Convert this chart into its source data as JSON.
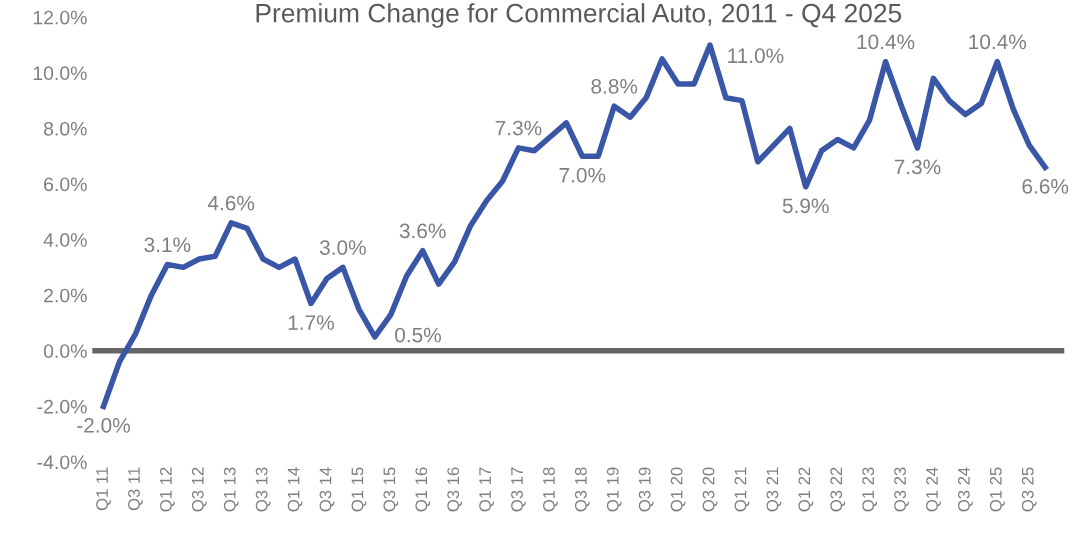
{
  "chart_data": {
    "type": "line",
    "title": "Premium Change for Commercial Auto, 2011 - Q4 2025",
    "categories": [
      "Q1 11",
      null,
      "Q3 11",
      null,
      "Q1 12",
      null,
      "Q3 12",
      null,
      "Q1 13",
      null,
      "Q3 13",
      null,
      "Q1 14",
      null,
      "Q3 14",
      null,
      "Q1 15",
      null,
      "Q3 15",
      null,
      "Q1 16",
      null,
      "Q3 16",
      null,
      "Q1 17",
      null,
      "Q3 17",
      null,
      "Q1 18",
      null,
      "Q3 18",
      null,
      "Q1 19",
      null,
      "Q3 19",
      null,
      "Q1 20",
      null,
      "Q3 20",
      null,
      "Q1 21",
      null,
      "Q3 21",
      null,
      "Q1 22",
      null,
      "Q3 22",
      null,
      "Q1 23",
      null,
      "Q3 23",
      null,
      "Q1 24",
      null,
      "Q3 24",
      null,
      "Q1 25",
      null,
      "Q3 25",
      null
    ],
    "series": [
      {
        "color": "#3a56a6",
        "values": [
          -2.0,
          -0.4,
          0.6,
          2.0,
          3.1,
          3.0,
          3.3,
          3.4,
          4.6,
          4.4,
          3.3,
          3.0,
          3.3,
          1.7,
          2.6,
          3.0,
          1.5,
          0.5,
          1.3,
          2.7,
          3.6,
          2.4,
          3.2,
          4.5,
          5.4,
          6.1,
          7.3,
          7.2,
          7.7,
          8.2,
          7.0,
          7.0,
          8.8,
          8.4,
          9.1,
          10.5,
          9.6,
          9.6,
          11.0,
          9.1,
          9.0,
          6.8,
          7.4,
          8.0,
          5.9,
          7.2,
          7.6,
          7.3,
          8.3,
          10.4,
          8.8,
          7.3,
          9.8,
          9.0,
          8.5,
          8.9,
          10.4,
          8.7,
          7.4,
          6.6
        ],
        "value_labels": [
          "-2.0%",
          null,
          null,
          null,
          "3.1%",
          null,
          null,
          null,
          "4.6%",
          null,
          null,
          null,
          null,
          "1.7%",
          null,
          "3.0%",
          null,
          "0.5%",
          null,
          null,
          "3.6%",
          null,
          null,
          null,
          null,
          null,
          "7.3%",
          null,
          null,
          null,
          "7.0%",
          null,
          "8.8%",
          null,
          null,
          null,
          null,
          null,
          "11.0%",
          null,
          null,
          null,
          null,
          null,
          "5.9%",
          null,
          null,
          null,
          null,
          "10.4%",
          null,
          "7.3%",
          null,
          null,
          null,
          null,
          "10.4%",
          null,
          null,
          "6.6%"
        ]
      }
    ],
    "ylim": [
      -4,
      12
    ],
    "yticks": [
      {
        "value": -4,
        "label": "-4.0%"
      },
      {
        "value": -2,
        "label": "-2.0%"
      },
      {
        "value": 0,
        "label": "0.0%"
      },
      {
        "value": 2,
        "label": "2.0%"
      },
      {
        "value": 4,
        "label": "4.0%"
      },
      {
        "value": 6,
        "label": "6.0%"
      },
      {
        "value": 8,
        "label": "8.0%"
      },
      {
        "value": 10,
        "label": "10.0%"
      },
      {
        "value": 12,
        "label": "12.0%"
      }
    ],
    "ref_lines": [
      {
        "axis": "y",
        "value": 0,
        "color": "#666666"
      }
    ],
    "grid": false,
    "marker": "none",
    "line_style": "solid"
  }
}
